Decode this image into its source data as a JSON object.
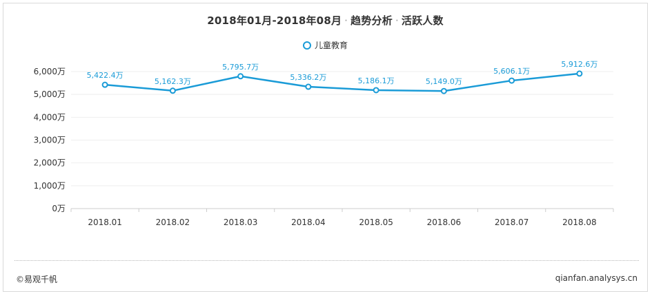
{
  "header": {
    "title_parts": [
      "2018年01月-2018年08月",
      "趋势分析",
      "活跃人数"
    ],
    "separator": "·"
  },
  "footer": {
    "copyright": "©易观千帆",
    "site": "qianfan.analysys.cn"
  },
  "colors": {
    "line": "#1a9bd7",
    "label": "#1a9bd7",
    "grid": "#eeeeee",
    "axis": "#cccccc"
  },
  "chart_data": {
    "type": "line",
    "title": "2018年01月-2018年08月 · 趋势分析 · 活跃人数",
    "categories": [
      "2018.01",
      "2018.02",
      "2018.03",
      "2018.04",
      "2018.05",
      "2018.06",
      "2018.07",
      "2018.08"
    ],
    "series": [
      {
        "name": "儿童教育",
        "values": [
          5422.4,
          5162.3,
          5795.7,
          5336.2,
          5186.1,
          5149.0,
          5606.1,
          5912.6
        ],
        "labels": [
          "5,422.4万",
          "5,162.3万",
          "5,795.7万",
          "5,336.2万",
          "5,186.1万",
          "5,149.0万",
          "5,606.1万",
          "5,912.6万"
        ]
      }
    ],
    "yticks": [
      0,
      1000,
      2000,
      3000,
      4000,
      5000,
      6000
    ],
    "ytick_labels": [
      "0万",
      "1,000万",
      "2,000万",
      "3,000万",
      "4,000万",
      "5,000万",
      "6,000万"
    ],
    "ylim": [
      0,
      6000
    ],
    "grid": true,
    "legend_position": "top-center"
  }
}
